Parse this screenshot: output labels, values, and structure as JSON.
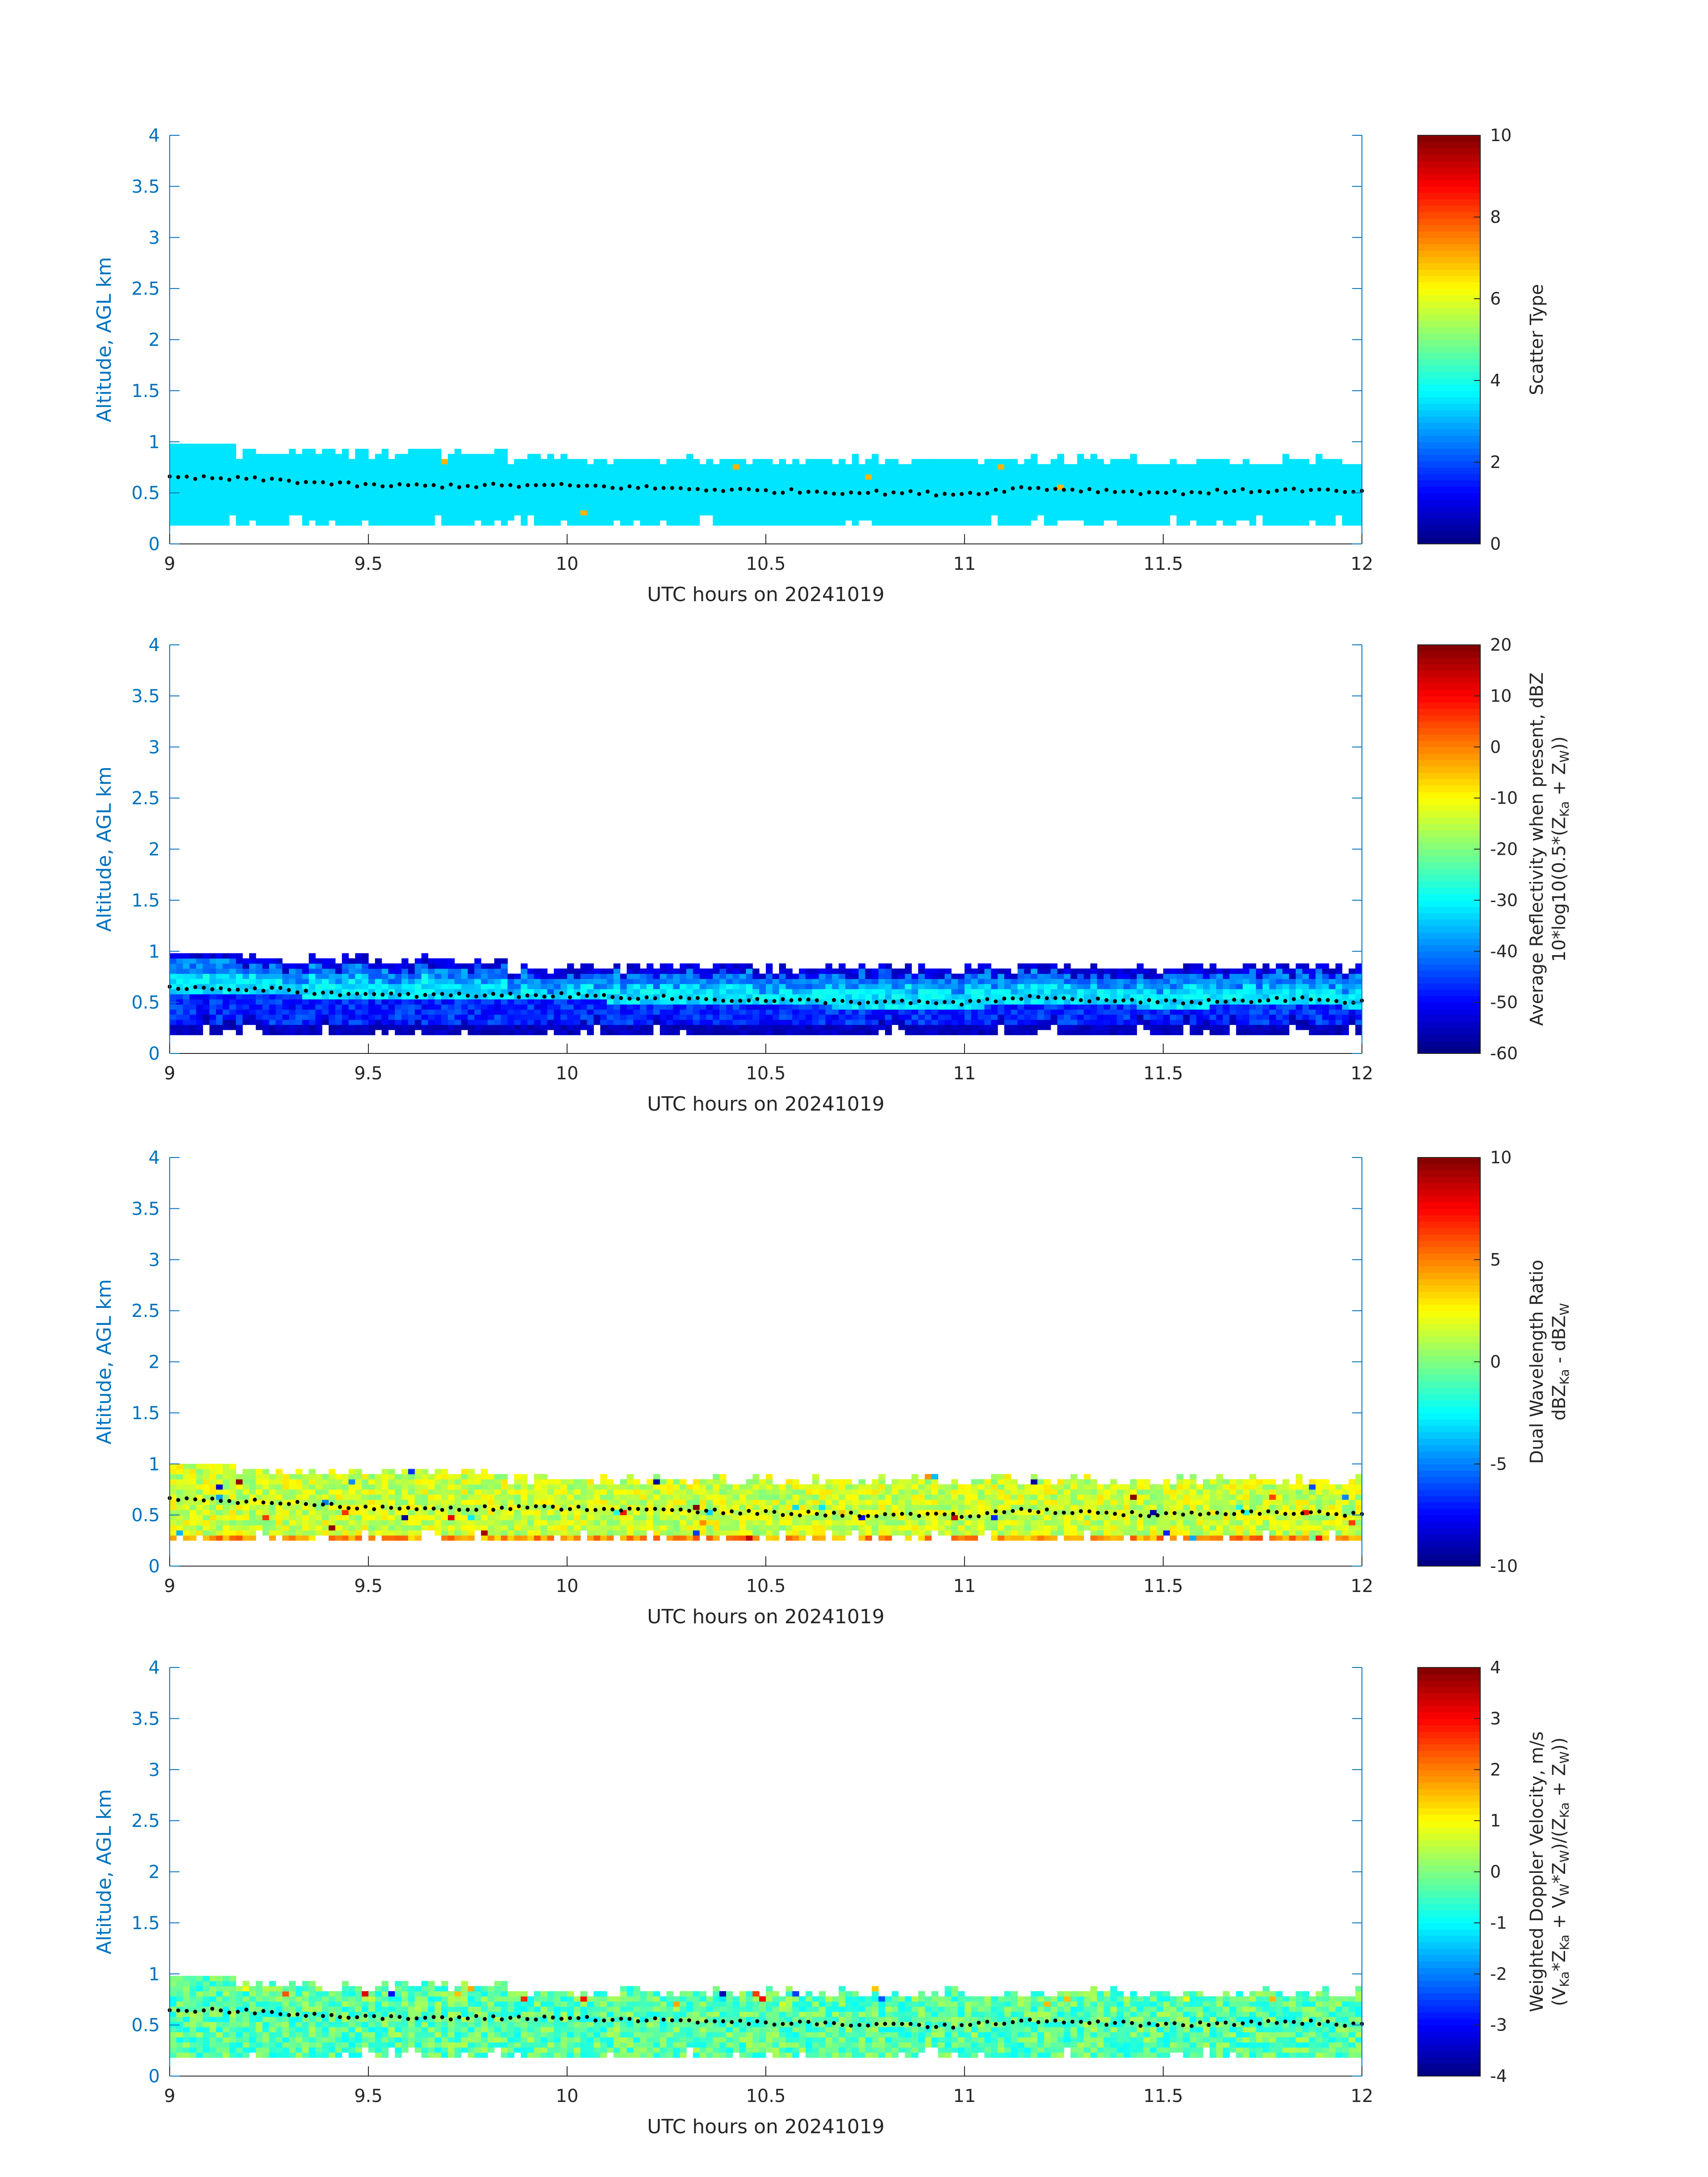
{
  "colors": {
    "axis_left": "#0072BD",
    "text": "#262626",
    "marker": "#000000"
  },
  "colormap": "jet",
  "chart_data": [
    {
      "type": "heatmap",
      "xlabel": "UTC hours on 20241019",
      "ylabel": "Altitude, AGL km",
      "xlim": [
        9,
        12
      ],
      "ylim": [
        0,
        4
      ],
      "xticks": [
        "9",
        "9.5",
        "10",
        "10.5",
        "11",
        "11.5",
        "12"
      ],
      "yticks": [
        "0",
        "0.5",
        "1",
        "1.5",
        "2",
        "2.5",
        "3",
        "3.5",
        "4"
      ],
      "colorbar": {
        "label_lines": [
          "Scatter Type"
        ],
        "clim": [
          0,
          10
        ],
        "ticks": [
          "0",
          "2",
          "4",
          "6",
          "8",
          "10"
        ],
        "tick_values": [
          0,
          2,
          4,
          6,
          8,
          10
        ]
      },
      "field": {
        "kind": "scatter_type",
        "dominant_value": 3.5
      },
      "echo_band_km": {
        "bottom": 0.18,
        "top": 0.92
      },
      "cloud_base_dotted_line_km": {
        "x": [
          9,
          9.25,
          9.5,
          10,
          10.5,
          11,
          11.15,
          11.5,
          11.85,
          12
        ],
        "y": [
          0.65,
          0.63,
          0.57,
          0.57,
          0.52,
          0.49,
          0.55,
          0.5,
          0.53,
          0.5
        ]
      }
    },
    {
      "type": "heatmap",
      "xlabel": "UTC hours on 20241019",
      "ylabel": "Altitude, AGL km",
      "xlim": [
        9,
        12
      ],
      "ylim": [
        0,
        4
      ],
      "xticks": [
        "9",
        "9.5",
        "10",
        "10.5",
        "11",
        "11.5",
        "12"
      ],
      "yticks": [
        "0",
        "0.5",
        "1",
        "1.5",
        "2",
        "2.5",
        "3",
        "3.5",
        "4"
      ],
      "colorbar": {
        "label_lines": [
          "Average Reflectivity when present, dBZ",
          "10*log10(0.5*(Z",
          "Ka",
          " + Z",
          "W",
          "))"
        ],
        "clim": [
          -60,
          20
        ],
        "ticks": [
          "-60",
          "-50",
          "-40",
          "-30",
          "-20",
          "-10",
          "0",
          "10",
          "20"
        ],
        "tick_values": [
          -60,
          -50,
          -40,
          -30,
          -20,
          -10,
          0,
          10,
          20
        ]
      },
      "field": {
        "kind": "reflectivity",
        "core_value": -32,
        "edge_value": -52
      },
      "echo_band_km": {
        "bottom": 0.18,
        "top": 0.95
      },
      "cloud_base_dotted_line_km": {
        "x": [
          9,
          9.25,
          9.5,
          10,
          10.5,
          11,
          11.15,
          11.5,
          11.85,
          12
        ],
        "y": [
          0.65,
          0.63,
          0.57,
          0.57,
          0.52,
          0.49,
          0.55,
          0.5,
          0.53,
          0.5
        ]
      }
    },
    {
      "type": "heatmap",
      "xlabel": "UTC hours on 20241019",
      "ylabel": "Altitude, AGL km",
      "xlim": [
        9,
        12
      ],
      "ylim": [
        0,
        4
      ],
      "xticks": [
        "9",
        "9.5",
        "10",
        "10.5",
        "11",
        "11.5",
        "12"
      ],
      "yticks": [
        "0",
        "0.5",
        "1",
        "1.5",
        "2",
        "2.5",
        "3",
        "3.5",
        "4"
      ],
      "colorbar": {
        "label_lines": [
          "Dual Wavelength Ratio",
          "dBZ",
          "Ka",
          " - dBZ",
          "W"
        ],
        "clim": [
          -10,
          10
        ],
        "ticks": [
          "-10",
          "-5",
          "0",
          "5",
          "10"
        ],
        "tick_values": [
          -10,
          -5,
          0,
          5,
          10
        ]
      },
      "field": {
        "kind": "dwr",
        "core_value": 1.5
      },
      "echo_band_km": {
        "bottom": 0.25,
        "top": 0.95
      },
      "cloud_base_dotted_line_km": {
        "x": [
          9,
          9.25,
          9.5,
          10,
          10.5,
          11,
          11.15,
          11.5,
          11.85,
          12
        ],
        "y": [
          0.65,
          0.63,
          0.57,
          0.57,
          0.52,
          0.49,
          0.55,
          0.5,
          0.53,
          0.5
        ]
      }
    },
    {
      "type": "heatmap",
      "xlabel": "UTC hours on 20241019",
      "ylabel": "Altitude, AGL km",
      "xlim": [
        9,
        12
      ],
      "ylim": [
        0,
        4
      ],
      "xticks": [
        "9",
        "9.5",
        "10",
        "10.5",
        "11",
        "11.5",
        "12"
      ],
      "yticks": [
        "0",
        "0.5",
        "1",
        "1.5",
        "2",
        "2.5",
        "3",
        "3.5",
        "4"
      ],
      "colorbar": {
        "label_lines": [
          "Weighted Doppler Velocity, m/s",
          "(V",
          "Ka",
          "*Z",
          "Ka",
          " + V",
          "W",
          "*Z",
          "W",
          ")/(Z",
          "Ka",
          " + Z",
          "W",
          "))"
        ],
        "clim": [
          -4,
          4
        ],
        "ticks": [
          "-4",
          "-3",
          "-2",
          "-1",
          "0",
          "1",
          "2",
          "3",
          "4"
        ],
        "tick_values": [
          -4,
          -3,
          -2,
          -1,
          0,
          1,
          2,
          3,
          4
        ]
      },
      "field": {
        "kind": "velocity",
        "core_value": -0.3
      },
      "echo_band_km": {
        "bottom": 0.18,
        "top": 0.92
      },
      "cloud_base_dotted_line_km": {
        "x": [
          9,
          9.25,
          9.5,
          10,
          10.5,
          11,
          11.15,
          11.5,
          11.85,
          12
        ],
        "y": [
          0.65,
          0.63,
          0.57,
          0.57,
          0.52,
          0.49,
          0.55,
          0.5,
          0.53,
          0.5
        ]
      }
    }
  ]
}
